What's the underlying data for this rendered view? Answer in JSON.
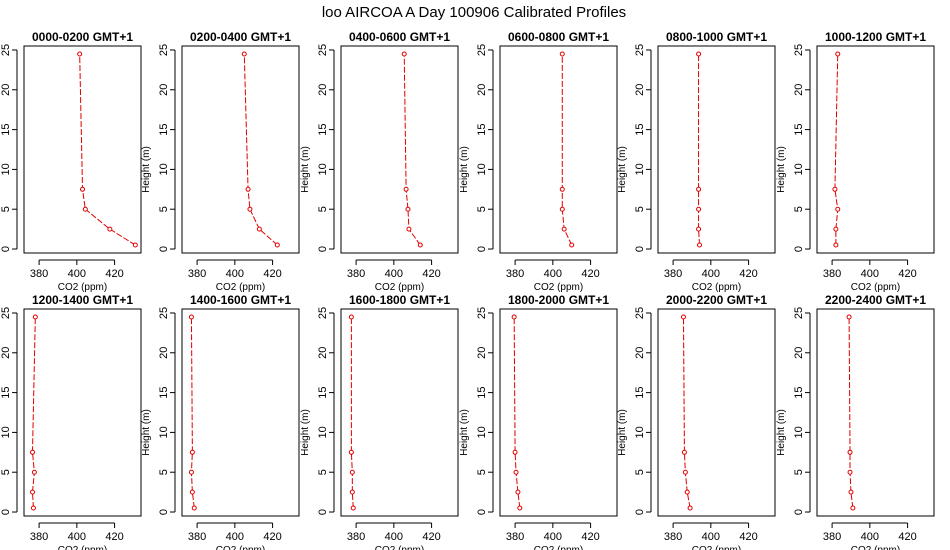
{
  "chart_data": {
    "type": "line",
    "title": "loo AIRCOA A  Day 100906  Calibrated Profiles",
    "xlabel": "CO2 (ppm)",
    "ylabel": "Height (m)",
    "xlim": [
      372,
      434
    ],
    "ylim": [
      -0.5,
      25.5
    ],
    "xticks": [
      380,
      400,
      420
    ],
    "yticks": [
      0,
      5,
      10,
      15,
      20,
      25
    ],
    "heights": [
      0.5,
      2.5,
      5,
      7.5,
      24.5
    ],
    "line_color": "#e00000",
    "grid": false,
    "panels": [
      {
        "title": "0000-0200 GMT+1",
        "values": [
          431,
          417.5,
          404.5,
          403,
          401.5
        ]
      },
      {
        "title": "0200-0400 GMT+1",
        "values": [
          422.5,
          413,
          408,
          407,
          405
        ]
      },
      {
        "title": "0400-0600 GMT+1",
        "values": [
          414,
          408,
          407.5,
          406.5,
          405.5
        ]
      },
      {
        "title": "0600-0800 GMT+1",
        "values": [
          410,
          406,
          405,
          405,
          405
        ]
      },
      {
        "title": "0800-1000 GMT+1",
        "values": [
          394,
          393.5,
          393.5,
          393.5,
          393.5
        ]
      },
      {
        "title": "1000-1200 GMT+1",
        "values": [
          382,
          382,
          383,
          381.5,
          383
        ]
      },
      {
        "title": "1200-1400 GMT+1",
        "values": [
          377,
          376.5,
          377.5,
          376.5,
          378
        ]
      },
      {
        "title": "1400-1600 GMT+1",
        "values": [
          378.5,
          377.5,
          377,
          377.5,
          377
        ]
      },
      {
        "title": "1600-1800 GMT+1",
        "values": [
          378.5,
          378,
          378,
          377.5,
          377.5
        ]
      },
      {
        "title": "1800-2000 GMT+1",
        "values": [
          382.5,
          381.5,
          380.5,
          380,
          379.5
        ]
      },
      {
        "title": "2000-2200 GMT+1",
        "values": [
          389,
          387.5,
          386.5,
          386,
          385.5
        ]
      },
      {
        "title": "2200-2400 GMT+1",
        "values": [
          391,
          390,
          389.5,
          389.5,
          389
        ]
      }
    ]
  }
}
